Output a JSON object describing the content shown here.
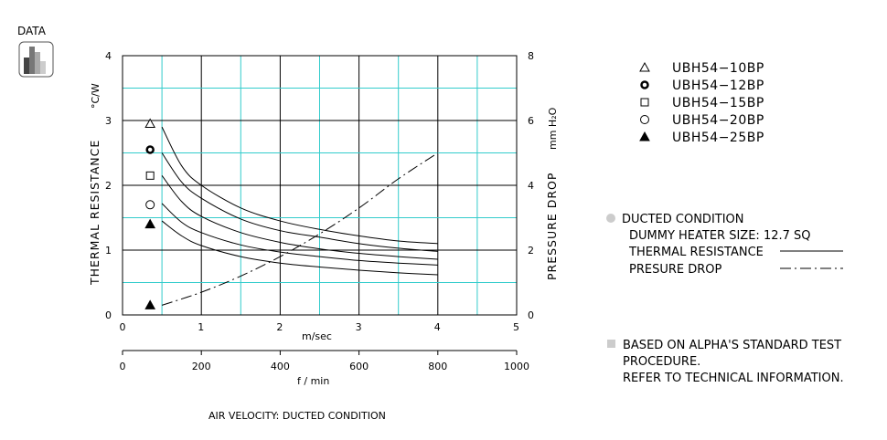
{
  "badge": {
    "label": "DATA",
    "icon": "bar-chart-icon"
  },
  "chart_data": {
    "type": "line",
    "left_axis": {
      "label": "THERMAL  RESISTANCE",
      "unit": "°C/W",
      "range": [
        0,
        4
      ],
      "ticks": [
        "0",
        "1",
        "2",
        "3",
        "4"
      ]
    },
    "right_axis": {
      "label": "PRESSURE  DROP",
      "unit": "mm H₂O",
      "range": [
        0,
        8
      ],
      "ticks": [
        "0",
        "2",
        "4",
        "6",
        "8"
      ]
    },
    "x_axis_top": {
      "label": "m/sec",
      "range": [
        0,
        5
      ],
      "ticks": [
        "0",
        "1",
        "2",
        "3",
        "4",
        "5"
      ]
    },
    "x_axis_bottom": {
      "label": "f / min",
      "range": [
        0,
        1000
      ],
      "ticks": [
        "0",
        "200",
        "400",
        "600",
        "800",
        "1000"
      ]
    },
    "caption": "AIR VELOCITY:  DUCTED CONDITION",
    "grid": true,
    "series": [
      {
        "name": "UBH54-10BP",
        "marker": "triangle-open",
        "axis": "left",
        "x": [
          0.5,
          0.75,
          1,
          1.5,
          2,
          2.5,
          3,
          3.5,
          4
        ],
        "y": [
          2.9,
          2.3,
          2.0,
          1.65,
          1.45,
          1.32,
          1.22,
          1.14,
          1.1
        ]
      },
      {
        "name": "UBH54-12BP",
        "marker": "circle-bold",
        "axis": "left",
        "x": [
          0.5,
          0.75,
          1,
          1.5,
          2,
          2.5,
          3,
          3.5,
          4
        ],
        "y": [
          2.5,
          2.05,
          1.8,
          1.48,
          1.3,
          1.2,
          1.1,
          1.03,
          0.98
        ]
      },
      {
        "name": "UBH54-15BP",
        "marker": "square-open",
        "axis": "left",
        "x": [
          0.5,
          0.75,
          1,
          1.5,
          2,
          2.5,
          3,
          3.5,
          4
        ],
        "y": [
          2.15,
          1.75,
          1.52,
          1.27,
          1.12,
          1.02,
          0.95,
          0.9,
          0.86
        ]
      },
      {
        "name": "UBH54-20BP",
        "marker": "circle-open",
        "axis": "left",
        "x": [
          0.5,
          0.75,
          1,
          1.5,
          2,
          2.5,
          3,
          3.5,
          4
        ],
        "y": [
          1.72,
          1.43,
          1.27,
          1.08,
          0.97,
          0.9,
          0.84,
          0.8,
          0.77
        ]
      },
      {
        "name": "UBH54-25BP",
        "marker": "triangle-filled",
        "axis": "left",
        "x": [
          0.5,
          0.75,
          1,
          1.5,
          2,
          2.5,
          3,
          3.5,
          4
        ],
        "y": [
          1.45,
          1.22,
          1.07,
          0.9,
          0.8,
          0.74,
          0.69,
          0.65,
          0.62
        ]
      },
      {
        "name": "PRESURE DROP",
        "axis": "right",
        "style": "dash-dot",
        "x": [
          0.5,
          1,
          1.5,
          2,
          2.5,
          3,
          3.5,
          4
        ],
        "y": [
          0.3,
          0.7,
          1.2,
          1.8,
          2.5,
          3.3,
          4.2,
          5.0
        ]
      }
    ],
    "marker_points": [
      {
        "marker": "triangle-open",
        "x": 0.35,
        "y": 2.95
      },
      {
        "marker": "circle-bold",
        "x": 0.35,
        "y": 2.55
      },
      {
        "marker": "square-open",
        "x": 0.35,
        "y": 2.15
      },
      {
        "marker": "circle-open",
        "x": 0.35,
        "y": 1.7
      },
      {
        "marker": "triangle-filled",
        "x": 0.35,
        "y": 1.4
      },
      {
        "marker": "triangle-filled",
        "x": 0.35,
        "y": 0.15
      }
    ]
  },
  "legend": [
    {
      "marker": "triangle-open",
      "label": "UBH54−10BP"
    },
    {
      "marker": "circle-bold",
      "label": "UBH54−12BP"
    },
    {
      "marker": "square-open",
      "label": "UBH54−15BP"
    },
    {
      "marker": "circle-open",
      "label": "UBH54−20BP"
    },
    {
      "marker": "triangle-filled",
      "label": "UBH54−25BP"
    }
  ],
  "conditions": {
    "title": "DUCTED CONDITION",
    "heater": "DUMMY HEATER SIZE: 12.7 SQ",
    "thermal_label": "THERMAL RESISTANCE",
    "pressure_label": "PRESURE DROP"
  },
  "footnote": {
    "line1": "BASED ON ALPHA'S STANDARD TEST",
    "line2": "PROCEDURE.",
    "line3": "REFER TO TECHNICAL INFORMATION."
  },
  "colors": {
    "grid": "#33cccc",
    "frame": "#000000",
    "bullet": "#cccccc"
  }
}
